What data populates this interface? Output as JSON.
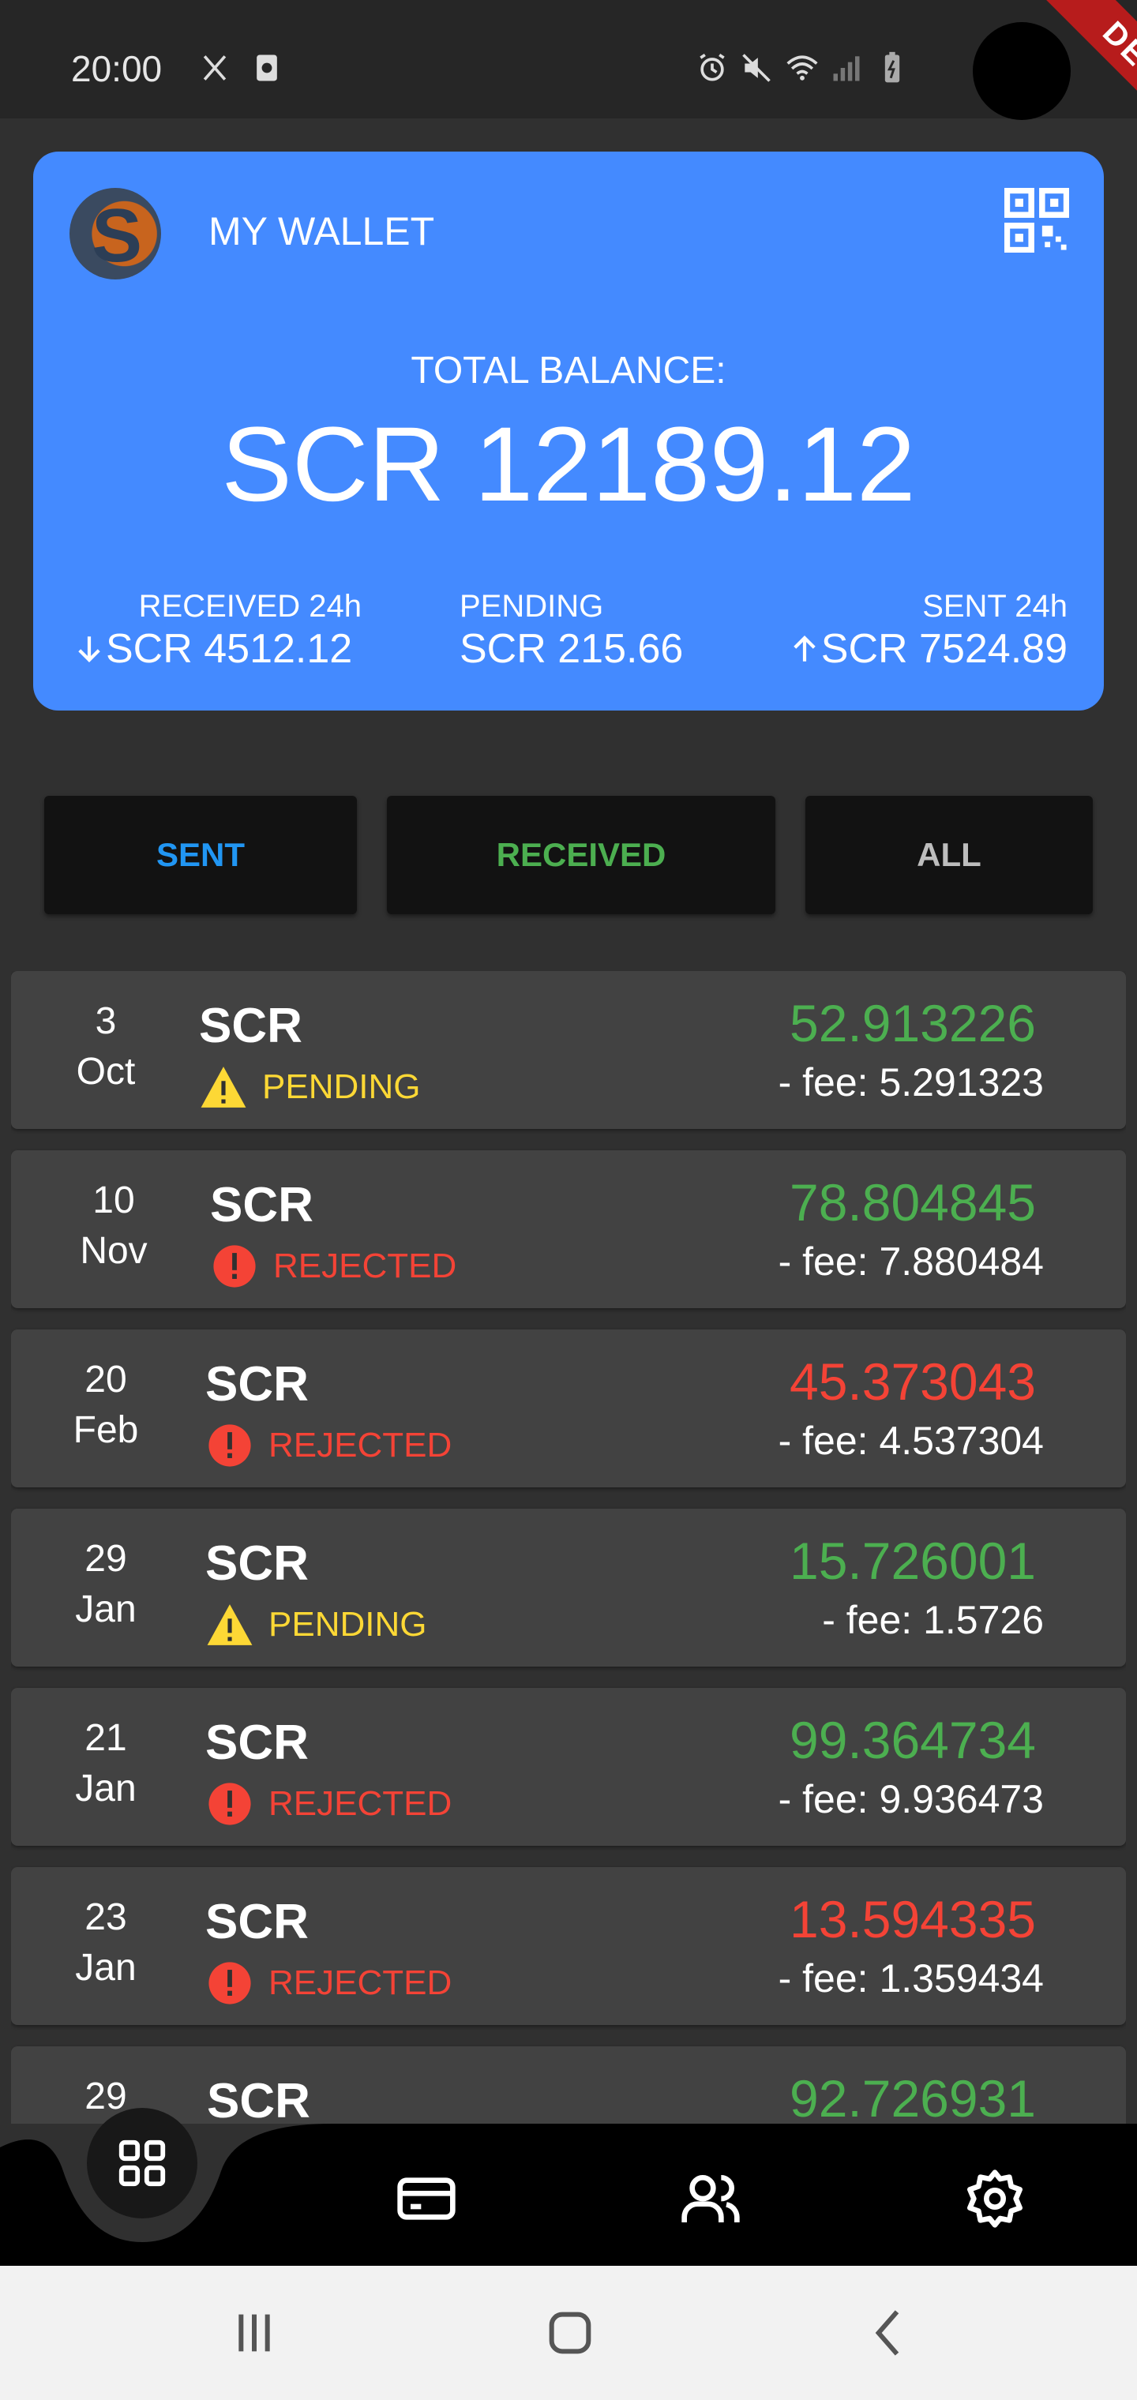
{
  "status_bar": {
    "time": "20:00",
    "debug_label": "DEBUG"
  },
  "wallet": {
    "title": "MY WALLET",
    "balance_label": "TOTAL BALANCE:",
    "balance_value": "SCR 12189.12",
    "received_label": "RECEIVED 24h",
    "received_value": "SCR 4512.12",
    "pending_label": "PENDING",
    "pending_value": "SCR 215.66",
    "sent_label": "SENT 24h",
    "sent_value": "SCR 7524.89"
  },
  "filters": {
    "sent": "SENT",
    "received": "RECEIVED",
    "all": "ALL"
  },
  "transactions": [
    {
      "day": "3",
      "month": "Oct",
      "currency": "SCR",
      "status": "PENDING",
      "amount": "52.913226",
      "fee": "- fee: 5.291323",
      "amount_color": "#4caf50"
    },
    {
      "day": "10",
      "month": "Nov",
      "currency": "SCR",
      "status": "REJECTED",
      "amount": "78.804845",
      "fee": "- fee: 7.880484",
      "amount_color": "#4caf50"
    },
    {
      "day": "20",
      "month": "Feb",
      "currency": "SCR",
      "status": "REJECTED",
      "amount": "45.373043",
      "fee": "- fee: 4.537304",
      "amount_color": "#f44336"
    },
    {
      "day": "29",
      "month": "Jan",
      "currency": "SCR",
      "status": "PENDING",
      "amount": "15.726001",
      "fee": "- fee: 1.5726",
      "amount_color": "#4caf50"
    },
    {
      "day": "21",
      "month": "Jan",
      "currency": "SCR",
      "status": "REJECTED",
      "amount": "99.364734",
      "fee": "- fee: 9.936473",
      "amount_color": "#4caf50"
    },
    {
      "day": "23",
      "month": "Jan",
      "currency": "SCR",
      "status": "REJECTED",
      "amount": "13.594335",
      "fee": "- fee: 1.359434",
      "amount_color": "#f44336"
    },
    {
      "day": "29",
      "month": "",
      "currency": "SCR",
      "status": "",
      "amount": "92.726931",
      "fee": "",
      "amount_color": "#4caf50"
    }
  ],
  "nav": {
    "items": [
      "grid-icon",
      "card-icon",
      "contacts-icon",
      "settings-icon"
    ],
    "active": "grid-icon"
  },
  "colors": {
    "card_blue": "#448aff",
    "pending_yellow": "#fdd835",
    "rejected_red": "#f44336",
    "received_green": "#4caf50",
    "sent_blue": "#2196f3"
  }
}
